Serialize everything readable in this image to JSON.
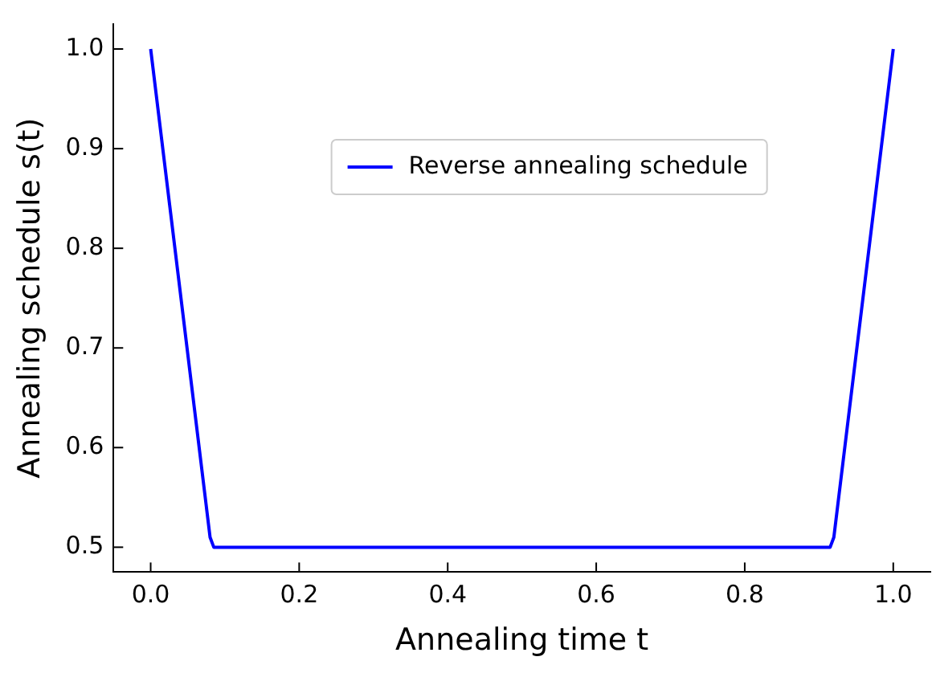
{
  "chart_data": {
    "type": "line",
    "xlabel": "Annealing time t",
    "ylabel": "Annealing schedule s(t)",
    "series": [
      {
        "name": "Reverse annealing schedule",
        "color": "#0000ff",
        "x": [
          0,
          0.08,
          0.085,
          0.915,
          0.92,
          1.0
        ],
        "values": [
          1.0,
          0.51,
          0.5,
          0.5,
          0.51,
          1.0
        ]
      }
    ],
    "xlim": [
      -0.05,
      1.05
    ],
    "xticks": [
      {
        "value": 0,
        "label": "0.0"
      },
      0.2,
      0.4,
      0.6,
      0.8,
      {
        "value": 1,
        "label": "1.0"
      }
    ],
    "ylim": [
      0.475,
      1.025
    ],
    "yticks": [
      0.5,
      0.6,
      0.7,
      0.8,
      0.9,
      {
        "value": 1,
        "label": "1.0"
      }
    ],
    "grid": false,
    "legend": "top",
    "marker": "none",
    "line_style": "solid"
  }
}
